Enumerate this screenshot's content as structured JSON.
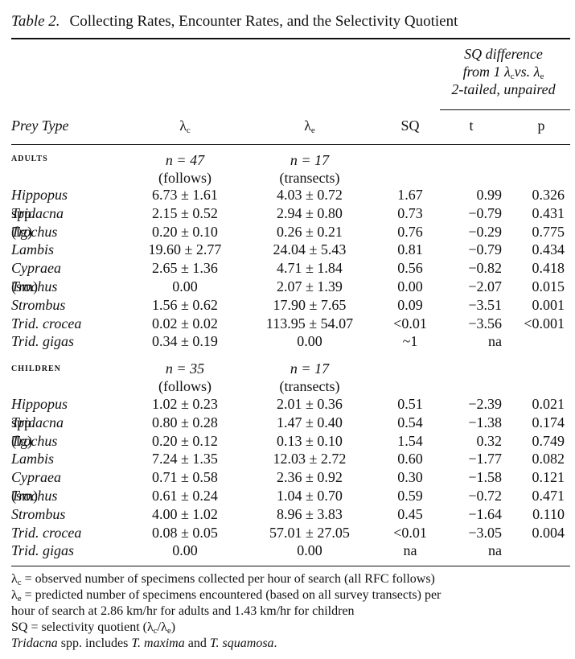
{
  "table": {
    "number": "Table 2.",
    "title": "Collecting Rates, Encounter Rates, and the Selectivity Quotient"
  },
  "headers": {
    "sq_difference": [
      "SQ difference",
      "from 1 λ",
      "vs. λ",
      "2-tailed, unpaired"
    ],
    "sq_difference_subs": [
      "c",
      "e"
    ],
    "prey_type": "Prey Type",
    "lambda": "λ",
    "lambda_c_sub": "c",
    "lambda_e_sub": "e",
    "sq": "SQ",
    "t": "t",
    "p": "p"
  },
  "sections": [
    {
      "label": "ADULTS",
      "n_c": "n = 47",
      "n_c_source": "(follows)",
      "n_e": "n = 17",
      "n_e_source": "(transects)",
      "rows": [
        {
          "prey": "Hippopus",
          "prey_suffix": "",
          "lc": "6.73 ± 1.61",
          "le": "4.03 ± 0.72",
          "sq": "1.67",
          "t": "0.99",
          "p": "0.326"
        },
        {
          "prey": "Tridacna",
          "prey_suffix": " spp.",
          "lc": "2.15 ± 0.52",
          "le": "2.94 ± 0.80",
          "sq": "0.73",
          "t": "−0.79",
          "p": "0.431"
        },
        {
          "prey": "Trochus",
          "prey_suffix": " (lg)",
          "lc": "0.20 ± 0.10",
          "le": "0.26 ± 0.21",
          "sq": "0.76",
          "t": "−0.29",
          "p": "0.775"
        },
        {
          "prey": "Lambis",
          "prey_suffix": "",
          "lc": "19.60 ± 2.77",
          "le": "24.04 ± 5.43",
          "sq": "0.81",
          "t": "−0.79",
          "p": "0.434"
        },
        {
          "prey": "Cypraea",
          "prey_suffix": "",
          "lc": "2.65 ± 1.36",
          "le": "4.71 ± 1.84",
          "sq": "0.56",
          "t": "−0.82",
          "p": "0.418"
        },
        {
          "prey": "Trochus",
          "prey_suffix": " (sm)",
          "lc": "0.00",
          "le": "2.07 ± 1.39",
          "sq": "0.00",
          "t": "−2.07",
          "p": "0.015"
        },
        {
          "prey": "Strombus",
          "prey_suffix": "",
          "lc": "1.56 ± 0.62",
          "le": "17.90 ± 7.65",
          "sq": "0.09",
          "t": "−3.51",
          "p": "0.001"
        },
        {
          "prey": "Trid. crocea",
          "prey_suffix": "",
          "lc": "0.02 ± 0.02",
          "le": "113.95 ± 54.07",
          "sq": "<0.01",
          "t": "−3.56",
          "p": "<0.001"
        },
        {
          "prey": "Trid. gigas",
          "prey_suffix": "",
          "lc": "0.34 ± 0.19",
          "le": "0.00",
          "sq": "~1",
          "t": "na",
          "p": ""
        }
      ]
    },
    {
      "label": "CHILDREN",
      "n_c": "n = 35",
      "n_c_source": "(follows)",
      "n_e": "n = 17",
      "n_e_source": "(transects)",
      "rows": [
        {
          "prey": "Hippopus",
          "prey_suffix": "",
          "lc": "1.02 ± 0.23",
          "le": "2.01 ± 0.36",
          "sq": "0.51",
          "t": "−2.39",
          "p": "0.021"
        },
        {
          "prey": "Tridacna",
          "prey_suffix": " spp.",
          "lc": "0.80 ± 0.28",
          "le": "1.47 ± 0.40",
          "sq": "0.54",
          "t": "−1.38",
          "p": "0.174"
        },
        {
          "prey": "Trochus",
          "prey_suffix": " (lg)",
          "lc": "0.20 ± 0.12",
          "le": "0.13 ± 0.10",
          "sq": "1.54",
          "t": "0.32",
          "p": "0.749"
        },
        {
          "prey": "Lambis",
          "prey_suffix": "",
          "lc": "7.24 ± 1.35",
          "le": "12.03 ± 2.72",
          "sq": "0.60",
          "t": "−1.77",
          "p": "0.082"
        },
        {
          "prey": "Cypraea",
          "prey_suffix": "",
          "lc": "0.71 ± 0.58",
          "le": "2.36 ± 0.92",
          "sq": "0.30",
          "t": "−1.58",
          "p": "0.121"
        },
        {
          "prey": "Trochus",
          "prey_suffix": " (sm)",
          "lc": "0.61 ± 0.24",
          "le": "1.04 ± 0.70",
          "sq": "0.59",
          "t": "−0.72",
          "p": "0.471"
        },
        {
          "prey": "Strombus",
          "prey_suffix": "",
          "lc": "4.00 ± 1.02",
          "le": "8.96 ± 3.83",
          "sq": "0.45",
          "t": "−1.64",
          "p": "0.110"
        },
        {
          "prey": "Trid. crocea",
          "prey_suffix": "",
          "lc": "0.08 ± 0.05",
          "le": "57.01 ± 27.05",
          "sq": "<0.01",
          "t": "−3.05",
          "p": "0.004"
        },
        {
          "prey": "Trid. gigas",
          "prey_suffix": "",
          "lc": "0.00",
          "le": "0.00",
          "sq": "na",
          "t": "na",
          "p": ""
        }
      ]
    }
  ],
  "notes": {
    "lambda_c": " = observed number of specimens collected per hour of search (all RFC follows)",
    "lambda_e_1": " = predicted number of specimens encountered (based on all survey transects) per",
    "lambda_e_2": "hour of search at 2.86 km/hr for adults and 1.43 km/hr for children",
    "sq_prefix": "SQ = selectivity quotient (λ",
    "sq_mid": "/λ",
    "sq_suffix": ")",
    "tridacna_genus": "Tridacna",
    "tridacna_text1": " spp. includes ",
    "tridacna_sp1": "T. maxima",
    "tridacna_text2": " and ",
    "tridacna_sp2": "T. squamosa",
    "tridacna_end": "."
  }
}
